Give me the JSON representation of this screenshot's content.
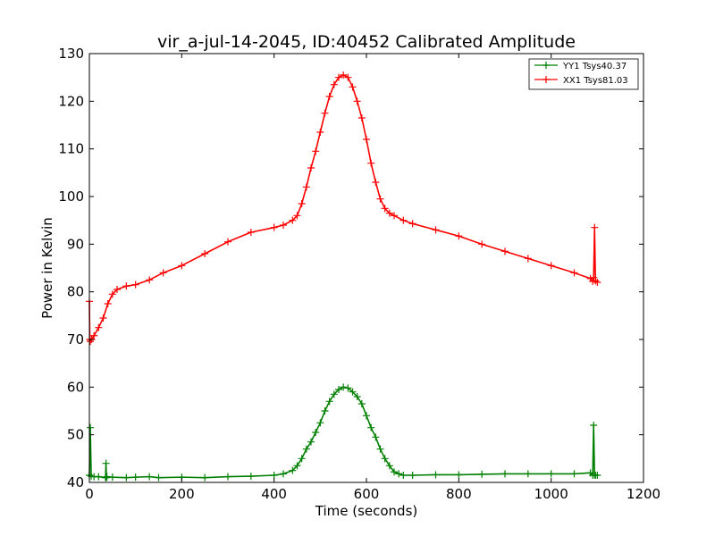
{
  "chart_data": {
    "type": "line",
    "title": "vir_a-jul-14-2045, ID:40452 Calibrated Amplitude",
    "xlabel": "Time (seconds)",
    "ylabel": "Power in Kelvin",
    "xlim": [
      0,
      1200
    ],
    "ylim": [
      40,
      130
    ],
    "xticks": [
      0,
      200,
      400,
      600,
      800,
      1000,
      1200
    ],
    "yticks": [
      40,
      50,
      60,
      70,
      80,
      90,
      100,
      110,
      120,
      130
    ],
    "xtick_labels": [
      "0",
      "200",
      "400",
      "600",
      "800",
      "1000",
      "1200"
    ],
    "ytick_labels": [
      "40",
      "50",
      "60",
      "70",
      "80",
      "90",
      "100",
      "110",
      "120",
      "130"
    ],
    "grid": false,
    "legend_position": "top-right",
    "marker": "+",
    "series": [
      {
        "name": "YY1 Tsys40.37",
        "color": "#008000",
        "x": [
          0,
          2,
          4,
          10,
          20,
          35,
          36,
          37,
          38,
          50,
          80,
          100,
          130,
          150,
          200,
          250,
          300,
          350,
          400,
          420,
          440,
          450,
          460,
          470,
          480,
          490,
          500,
          510,
          520,
          530,
          540,
          550,
          560,
          570,
          580,
          590,
          600,
          610,
          620,
          630,
          640,
          650,
          660,
          670,
          680,
          700,
          750,
          800,
          850,
          900,
          950,
          1000,
          1050,
          1085,
          1090,
          1092,
          1094,
          1096,
          1100
        ],
        "y": [
          41.5,
          51.5,
          41.3,
          41.2,
          41.2,
          41.0,
          44.0,
          41.0,
          41.2,
          41.1,
          41.0,
          41.1,
          41.2,
          41.0,
          41.1,
          41.0,
          41.2,
          41.3,
          41.5,
          41.8,
          42.5,
          43.5,
          45.0,
          47.0,
          48.5,
          50.5,
          52.5,
          55.0,
          57.0,
          58.5,
          59.5,
          60.0,
          59.8,
          59.0,
          58.0,
          56.5,
          54.0,
          51.5,
          49.5,
          47.0,
          45.0,
          43.5,
          42.2,
          41.8,
          41.5,
          41.5,
          41.6,
          41.6,
          41.7,
          41.8,
          41.8,
          41.8,
          41.8,
          42.0,
          41.5,
          52.0,
          41.6,
          41.5,
          41.5
        ]
      },
      {
        "name": "XX1 Tsys81.03",
        "color": "#ff0000",
        "x": [
          0,
          1,
          2,
          5,
          10,
          20,
          30,
          40,
          50,
          60,
          80,
          100,
          130,
          160,
          200,
          250,
          300,
          350,
          400,
          420,
          440,
          450,
          460,
          470,
          480,
          490,
          500,
          510,
          520,
          530,
          540,
          550,
          560,
          570,
          580,
          590,
          600,
          610,
          620,
          630,
          640,
          650,
          660,
          680,
          700,
          750,
          800,
          850,
          900,
          950,
          1000,
          1050,
          1085,
          1090,
          1092,
          1094,
          1096,
          1100
        ],
        "y": [
          78.0,
          70.0,
          69.6,
          70.0,
          70.8,
          72.5,
          74.5,
          77.5,
          79.5,
          80.5,
          81.2,
          81.5,
          82.5,
          84.0,
          85.5,
          88.0,
          90.5,
          92.5,
          93.5,
          94.0,
          95.0,
          96.0,
          98.5,
          102.0,
          106.0,
          109.5,
          113.5,
          117.5,
          121.0,
          123.5,
          125.0,
          125.5,
          125.0,
          123.0,
          120.0,
          116.5,
          112.0,
          107.0,
          103.0,
          99.5,
          97.5,
          96.5,
          96.0,
          95.0,
          94.3,
          93.0,
          91.7,
          90.0,
          88.5,
          87.0,
          85.5,
          84.0,
          82.8,
          82.2,
          83.0,
          93.5,
          82.3,
          82.0
        ]
      }
    ]
  }
}
